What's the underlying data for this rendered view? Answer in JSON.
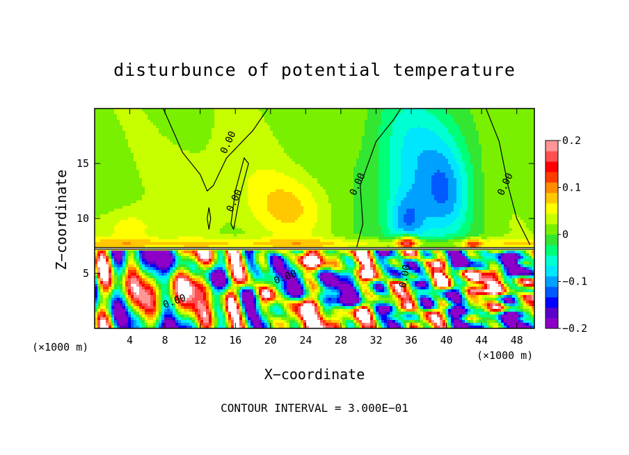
{
  "chart_data": {
    "type": "heatmap",
    "title": "disturbunce of potential temperature",
    "xlabel": "X−coordinate",
    "ylabel": "Z−coordinate",
    "x_unit_left": "(×1000 m)",
    "x_unit_right": "(×1000 m)",
    "footer": "CONTOUR INTERVAL = 3.000E−01",
    "xlim": [
      0,
      50
    ],
    "ylim": [
      0,
      20
    ],
    "x_ticks": [
      "4",
      "8",
      "12",
      "16",
      "20",
      "24",
      "28",
      "32",
      "36",
      "40",
      "44",
      "48"
    ],
    "y_ticks": [
      "5",
      "10",
      "15"
    ],
    "colorbar": {
      "range": [
        -0.2,
        0.2
      ],
      "tick_labels": [
        "0.2",
        "0.1",
        "0",
        "−0.1",
        "−0.2"
      ],
      "colors": [
        "#8c00c8",
        "#5a00c8",
        "#0000ff",
        "#005aff",
        "#00a0ff",
        "#00e6ff",
        "#00ffd2",
        "#00ff78",
        "#32e632",
        "#78f000",
        "#c8ff00",
        "#ffff00",
        "#ffc800",
        "#ff8c00",
        "#ff3c00",
        "#ff0000",
        "#ff5050",
        "#ff9696"
      ]
    },
    "contour_labels": [
      {
        "text": "0.00",
        "x": 15.5,
        "z": 16.8
      },
      {
        "text": "0.00",
        "x": 16.2,
        "z": 11.5
      },
      {
        "text": "0.00",
        "x": 30.2,
        "z": 13.0
      },
      {
        "text": "0.00",
        "x": 47.0,
        "z": 13.0
      },
      {
        "text": "0.00",
        "x": 21.8,
        "z": 4.4
      },
      {
        "text": "0.00",
        "x": 9.2,
        "z": 2.2
      },
      {
        "text": "0.00",
        "x": 35.6,
        "z": 4.7
      }
    ]
  }
}
